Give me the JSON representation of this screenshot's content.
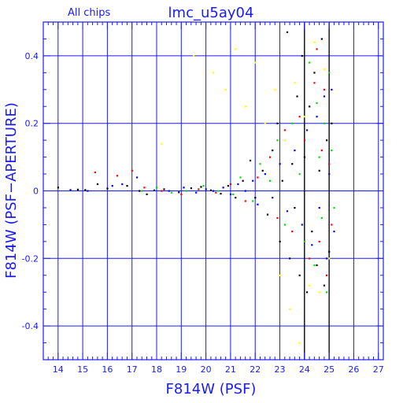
{
  "chart_data": {
    "type": "scatter",
    "title": "lmc_u5ay04",
    "subtitle": "All chips",
    "xlabel": "F814W (PSF)",
    "ylabel": "F814W (PSF−APERTURE)",
    "xlim": [
      13.4,
      27.2
    ],
    "ylim": [
      -0.5,
      0.5
    ],
    "xticks": [
      14,
      15,
      16,
      17,
      18,
      19,
      20,
      21,
      22,
      23,
      24,
      25,
      26,
      27
    ],
    "yticks": [
      -0.4,
      -0.2,
      0,
      0.2,
      0.4
    ],
    "ytick_labels": [
      "-0.4",
      "-0.2",
      "0",
      "0.2",
      "0.4"
    ],
    "grid": true,
    "vertical_lines": [
      24,
      25
    ],
    "series": [
      {
        "color": "#000000",
        "points": [
          [
            14.0,
            0.01
          ],
          [
            14.8,
            0.004
          ],
          [
            15.1,
            0.003
          ],
          [
            15.6,
            0.02
          ],
          [
            16.0,
            0.007
          ],
          [
            16.8,
            0.015
          ],
          [
            17.3,
            0.0
          ],
          [
            17.6,
            -0.01
          ],
          [
            18.3,
            0.005
          ],
          [
            18.9,
            -0.004
          ],
          [
            19.4,
            0.008
          ],
          [
            19.8,
            0.012
          ],
          [
            20.2,
            0.002
          ],
          [
            20.6,
            -0.008
          ],
          [
            20.9,
            0.015
          ],
          [
            21.2,
            -0.02
          ],
          [
            21.5,
            0.03
          ],
          [
            21.8,
            0.09
          ],
          [
            22.0,
            -0.02
          ],
          [
            22.3,
            0.06
          ],
          [
            22.5,
            -0.07
          ],
          [
            22.7,
            0.12
          ],
          [
            22.9,
            0.2
          ],
          [
            23.0,
            -0.15
          ],
          [
            23.1,
            0.03
          ],
          [
            23.3,
            0.47
          ],
          [
            23.4,
            -0.2
          ],
          [
            23.5,
            0.08
          ],
          [
            23.6,
            -0.05
          ],
          [
            23.7,
            0.28
          ],
          [
            23.8,
            -0.25
          ],
          [
            23.9,
            0.4
          ],
          [
            24.0,
            0.1
          ],
          [
            24.1,
            -0.3
          ],
          [
            24.2,
            0.25
          ],
          [
            24.3,
            -0.12
          ],
          [
            24.4,
            0.35
          ],
          [
            24.5,
            -0.22
          ],
          [
            24.6,
            0.06
          ],
          [
            24.7,
            0.45
          ],
          [
            24.8,
            -0.28
          ],
          [
            24.9,
            0.15
          ],
          [
            25.0,
            -0.18
          ],
          [
            25.1,
            0.2
          ]
        ]
      },
      {
        "color": "#ff0000",
        "points": [
          [
            15.5,
            0.055
          ],
          [
            16.4,
            0.045
          ],
          [
            17.0,
            0.06
          ],
          [
            17.5,
            0.01
          ],
          [
            18.2,
            0.0
          ],
          [
            19.0,
            -0.01
          ],
          [
            19.7,
            0.005
          ],
          [
            20.4,
            -0.005
          ],
          [
            21.0,
            0.02
          ],
          [
            21.6,
            -0.03
          ],
          [
            22.1,
            0.04
          ],
          [
            22.6,
            0.1
          ],
          [
            22.9,
            -0.08
          ],
          [
            23.2,
            0.18
          ],
          [
            23.5,
            -0.12
          ],
          [
            23.8,
            0.22
          ],
          [
            24.0,
            0.15
          ],
          [
            24.2,
            -0.2
          ],
          [
            24.4,
            0.32
          ],
          [
            24.5,
            0.42
          ],
          [
            24.6,
            -0.15
          ],
          [
            24.7,
            0.12
          ],
          [
            24.8,
            0.3
          ],
          [
            24.9,
            -0.25
          ],
          [
            25.0,
            0.08
          ],
          [
            25.1,
            -0.1
          ]
        ]
      },
      {
        "color": "#00e000",
        "points": [
          [
            17.4,
            0.0
          ],
          [
            18.0,
            0.01
          ],
          [
            18.6,
            -0.005
          ],
          [
            19.2,
            0.0
          ],
          [
            19.9,
            0.015
          ],
          [
            20.5,
            0.0
          ],
          [
            21.1,
            -0.01
          ],
          [
            21.4,
            0.04
          ],
          [
            21.9,
            -0.03
          ],
          [
            22.2,
            0.08
          ],
          [
            22.6,
            0.03
          ],
          [
            22.9,
            0.15
          ],
          [
            23.2,
            -0.1
          ],
          [
            23.5,
            0.2
          ],
          [
            23.8,
            0.05
          ],
          [
            24.0,
            -0.15
          ],
          [
            24.2,
            0.38
          ],
          [
            24.4,
            -0.22
          ],
          [
            24.5,
            0.26
          ],
          [
            24.6,
            0.1
          ],
          [
            24.7,
            -0.08
          ],
          [
            24.8,
            0.2
          ],
          [
            24.9,
            -0.3
          ],
          [
            25.0,
            0.35
          ],
          [
            25.1,
            0.12
          ],
          [
            25.2,
            -0.05
          ]
        ]
      },
      {
        "color": "#0000ff",
        "points": [
          [
            14.5,
            0.003
          ],
          [
            15.2,
            0.0
          ],
          [
            16.2,
            0.015
          ],
          [
            16.6,
            0.02
          ],
          [
            17.2,
            0.04
          ],
          [
            17.9,
            0.002
          ],
          [
            18.5,
            0.0
          ],
          [
            19.1,
            0.01
          ],
          [
            19.6,
            -0.005
          ],
          [
            20.0,
            0.005
          ],
          [
            20.3,
            0.0
          ],
          [
            20.7,
            0.01
          ],
          [
            21.0,
            -0.01
          ],
          [
            21.3,
            0.02
          ],
          [
            21.6,
            0.0
          ],
          [
            21.9,
            0.03
          ],
          [
            22.1,
            -0.04
          ],
          [
            22.4,
            0.05
          ],
          [
            22.7,
            -0.02
          ],
          [
            23.0,
            0.08
          ],
          [
            23.3,
            -0.06
          ],
          [
            23.6,
            0.12
          ],
          [
            23.9,
            -0.1
          ],
          [
            24.1,
            0.18
          ],
          [
            24.3,
            -0.16
          ],
          [
            24.5,
            0.22
          ],
          [
            24.6,
            -0.05
          ],
          [
            24.8,
            0.28
          ],
          [
            24.9,
            -0.2
          ],
          [
            25.0,
            0.05
          ],
          [
            25.1,
            0.3
          ],
          [
            25.2,
            -0.12
          ]
        ]
      },
      {
        "color": "#ffff00",
        "points": [
          [
            18.2,
            0.14
          ],
          [
            19.5,
            0.4
          ],
          [
            20.3,
            0.35
          ],
          [
            20.8,
            0.3
          ],
          [
            21.2,
            0.42
          ],
          [
            21.6,
            0.25
          ],
          [
            22.0,
            0.38
          ],
          [
            22.4,
            0.2
          ],
          [
            22.8,
            0.3
          ],
          [
            23.0,
            -0.25
          ],
          [
            23.2,
            0.15
          ],
          [
            23.4,
            -0.35
          ],
          [
            23.6,
            0.32
          ],
          [
            23.8,
            -0.45
          ],
          [
            24.0,
            0.22
          ],
          [
            24.2,
            -0.28
          ],
          [
            24.4,
            0.44
          ],
          [
            24.6,
            -0.3
          ],
          [
            24.8,
            0.36
          ],
          [
            25.0,
            -0.2
          ]
        ]
      }
    ]
  }
}
